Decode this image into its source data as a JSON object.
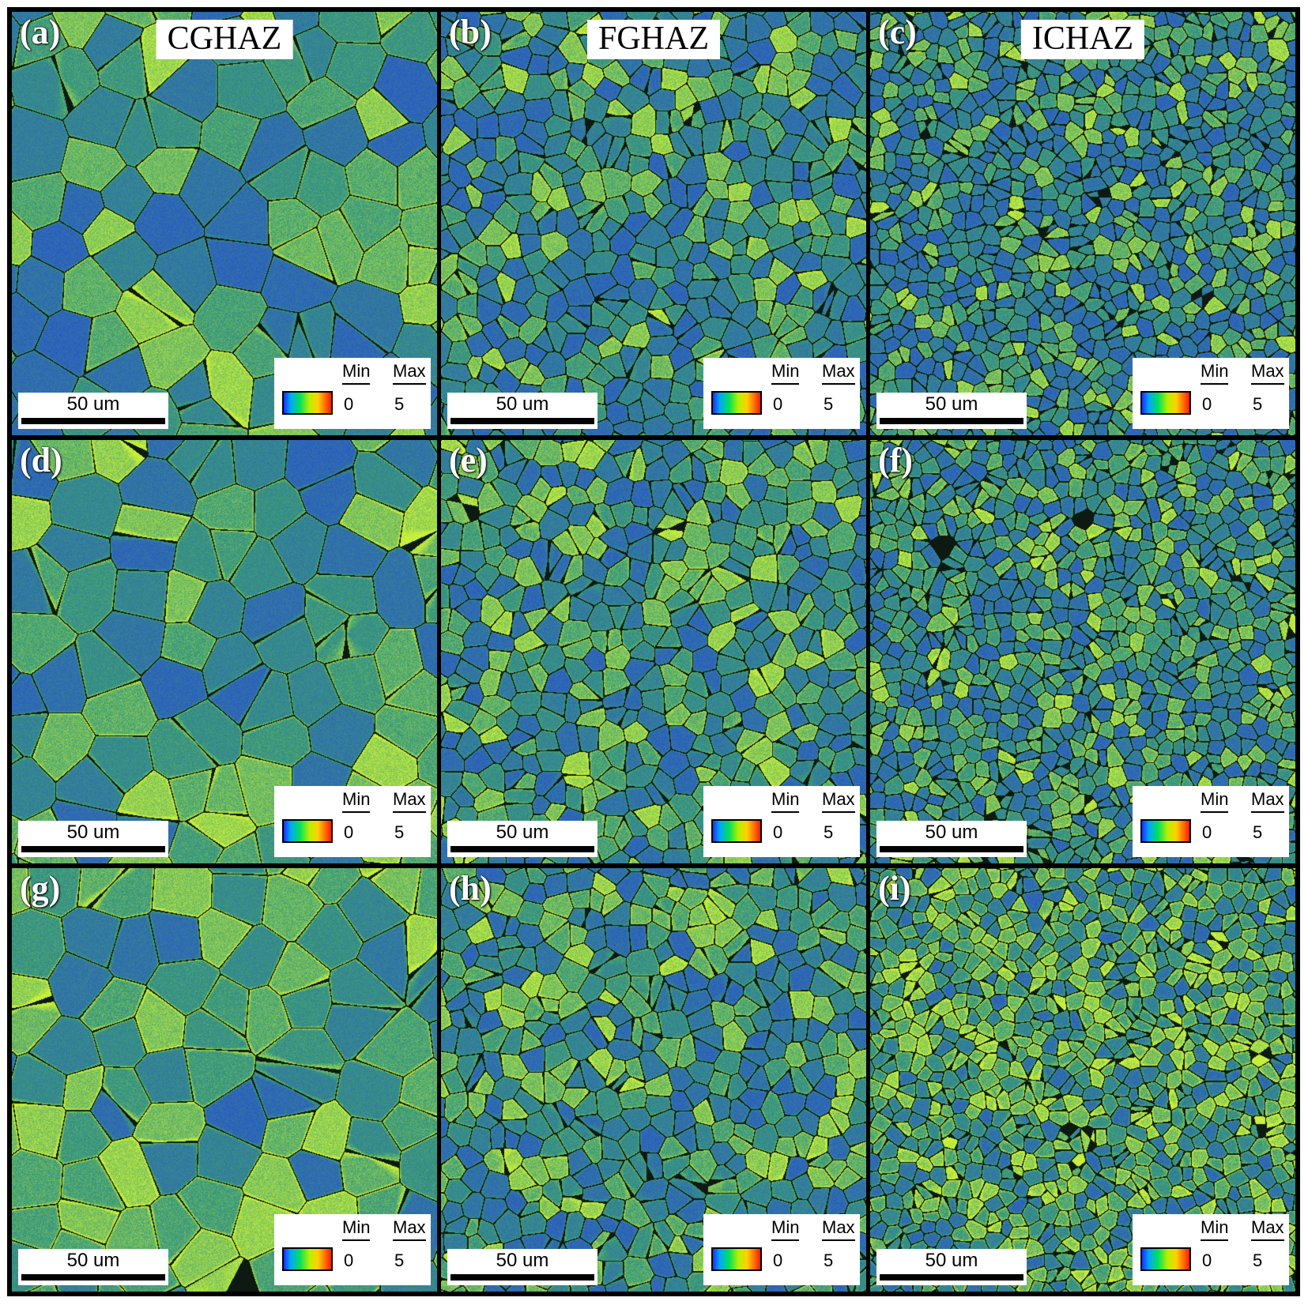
{
  "figure": {
    "columns": [
      {
        "title": "CGHAZ"
      },
      {
        "title": "FGHAZ"
      },
      {
        "title": "ICHAZ"
      }
    ],
    "panels": [
      {
        "letter": "(a)",
        "scale_label": "50 um",
        "legend_min_label": "Min",
        "legend_max_label": "Max",
        "legend_min_value": "0",
        "legend_max_value": "5",
        "texture": "coarse",
        "green_level": 0.55
      },
      {
        "letter": "(b)",
        "scale_label": "50 um",
        "legend_min_label": "Min",
        "legend_max_label": "Max",
        "legend_min_value": "0",
        "legend_max_value": "5",
        "texture": "fine",
        "green_level": 0.45
      },
      {
        "letter": "(c)",
        "scale_label": "50 um",
        "legend_min_label": "Min",
        "legend_max_label": "Max",
        "legend_min_value": "0",
        "legend_max_value": "5",
        "texture": "finer",
        "green_level": 0.35
      },
      {
        "letter": "(d)",
        "scale_label": "50 um",
        "legend_min_label": "Min",
        "legend_max_label": "Max",
        "legend_min_value": "0",
        "legend_max_value": "5",
        "texture": "coarse",
        "green_level": 0.7
      },
      {
        "letter": "(e)",
        "scale_label": "50 um",
        "legend_min_label": "Min",
        "legend_max_label": "Max",
        "legend_min_value": "0",
        "legend_max_value": "5",
        "texture": "fine",
        "green_level": 0.5
      },
      {
        "letter": "(f)",
        "scale_label": "50 um",
        "legend_min_label": "Min",
        "legend_max_label": "Max",
        "legend_min_value": "0",
        "legend_max_value": "5",
        "texture": "finer",
        "green_level": 0.5
      },
      {
        "letter": "(g)",
        "scale_label": "50 um",
        "legend_min_label": "Min",
        "legend_max_label": "Max",
        "legend_min_value": "0",
        "legend_max_value": "5",
        "texture": "coarse",
        "green_level": 0.85
      },
      {
        "letter": "(h)",
        "scale_label": "50 um",
        "legend_min_label": "Min",
        "legend_max_label": "Max",
        "legend_min_value": "0",
        "legend_max_value": "5",
        "texture": "fine",
        "green_level": 0.55
      },
      {
        "letter": "(i)",
        "scale_label": "50 um",
        "legend_min_label": "Min",
        "legend_max_label": "Max",
        "legend_min_value": "0",
        "legend_max_value": "5",
        "texture": "finer",
        "green_level": 0.75
      }
    ],
    "colors": {
      "frame": "#000000",
      "low": "#2a56c8",
      "mid": "#3a9a7a",
      "high": "#c8f03a",
      "boundary": "#0a1a10"
    }
  }
}
